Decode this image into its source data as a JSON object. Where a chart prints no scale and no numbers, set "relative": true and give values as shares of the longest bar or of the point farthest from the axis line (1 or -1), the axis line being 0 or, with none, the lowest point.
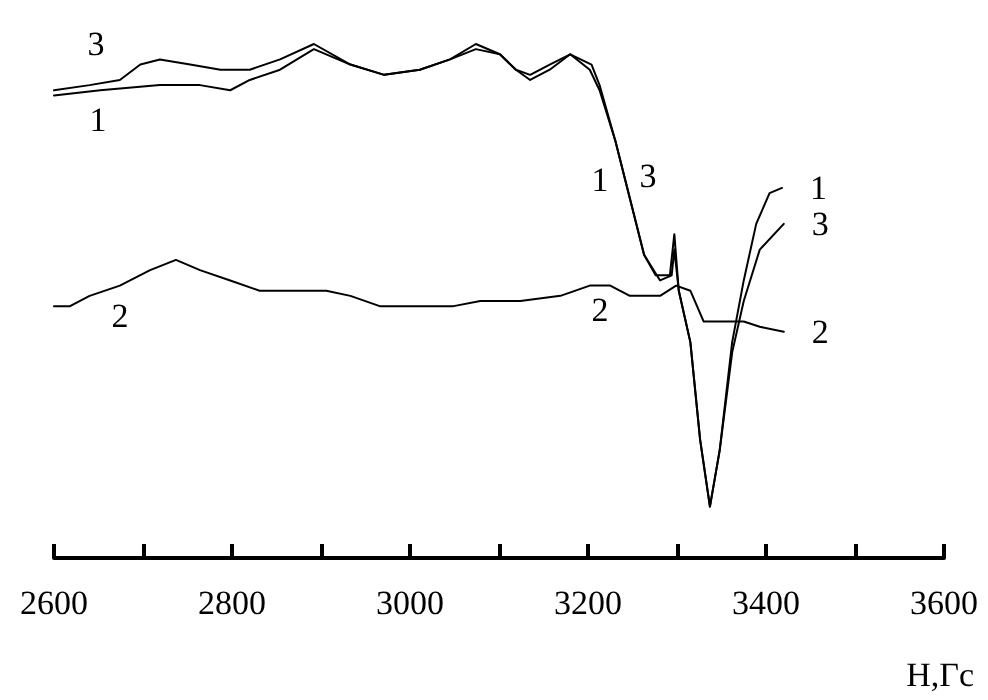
{
  "chart_data": {
    "type": "line",
    "relative": true,
    "xlabel": "H,Гс",
    "xlim": [
      2600,
      3600
    ],
    "xticks": [
      2600,
      {
        "value": 2700,
        "label": null
      },
      2800,
      {
        "value": 2900,
        "label": null
      },
      3000,
      {
        "value": 3100,
        "label": null
      },
      3200,
      {
        "value": 3300,
        "label": null
      },
      3400,
      {
        "value": 3500,
        "label": null
      },
      3600
    ],
    "grid": false,
    "legend": false,
    "marker": "none",
    "line_style": "solid",
    "series": [
      {
        "name": "1",
        "color": "#000000",
        "x": [
          2600,
          2652,
          2719,
          2764,
          2798,
          2820,
          2854,
          2892,
          2933,
          2971,
          3011,
          3045,
          3074,
          3101,
          3119,
          3135,
          3157,
          3180,
          3202,
          3213,
          3231,
          3247,
          3263,
          3276,
          3292,
          3297,
          3302,
          3315,
          3326,
          3337,
          3348,
          3362,
          3375,
          3389,
          3404,
          3418
        ],
        "values": [
          0.9,
          0.91,
          0.92,
          0.92,
          0.91,
          0.93,
          0.95,
          0.99,
          0.96,
          0.94,
          0.95,
          0.97,
          0.99,
          0.98,
          0.95,
          0.93,
          0.95,
          0.98,
          0.95,
          0.91,
          0.81,
          0.7,
          0.59,
          0.55,
          0.55,
          0.63,
          0.52,
          0.42,
          0.23,
          0.1,
          0.21,
          0.42,
          0.54,
          0.65,
          0.71,
          0.72
        ]
      },
      {
        "name": "2",
        "color": "#000000",
        "x": [
          2600,
          2618,
          2640,
          2674,
          2708,
          2737,
          2764,
          2798,
          2831,
          2876,
          2906,
          2933,
          2966,
          2989,
          3022,
          3049,
          3079,
          3124,
          3169,
          3202,
          3225,
          3247,
          3263,
          3281,
          3299,
          3315,
          3330,
          3344,
          3359,
          3375,
          3393,
          3420
        ],
        "values": [
          0.49,
          0.49,
          0.51,
          0.53,
          0.56,
          0.58,
          0.56,
          0.54,
          0.52,
          0.52,
          0.52,
          0.51,
          0.49,
          0.49,
          0.49,
          0.49,
          0.5,
          0.5,
          0.51,
          0.53,
          0.53,
          0.51,
          0.51,
          0.51,
          0.53,
          0.52,
          0.46,
          0.46,
          0.46,
          0.46,
          0.45,
          0.44
        ]
      },
      {
        "name": "3",
        "color": "#000000",
        "x": [
          2600,
          2640,
          2674,
          2697,
          2719,
          2753,
          2787,
          2820,
          2854,
          2892,
          2933,
          2971,
          3011,
          3045,
          3074,
          3101,
          3119,
          3135,
          3157,
          3180,
          3204,
          3213,
          3231,
          3247,
          3263,
          3281,
          3294,
          3297,
          3302,
          3315,
          3326,
          3337,
          3348,
          3362,
          3375,
          3393,
          3420
        ],
        "values": [
          0.91,
          0.92,
          0.93,
          0.96,
          0.97,
          0.96,
          0.95,
          0.95,
          0.97,
          1.0,
          0.96,
          0.94,
          0.95,
          0.97,
          1.0,
          0.98,
          0.95,
          0.94,
          0.96,
          0.98,
          0.96,
          0.92,
          0.81,
          0.7,
          0.59,
          0.54,
          0.55,
          0.6,
          0.52,
          0.42,
          0.23,
          0.1,
          0.21,
          0.4,
          0.5,
          0.6,
          0.65
        ]
      }
    ],
    "annotations": [
      "3",
      "1",
      "2",
      "1",
      "3",
      "2"
    ]
  }
}
